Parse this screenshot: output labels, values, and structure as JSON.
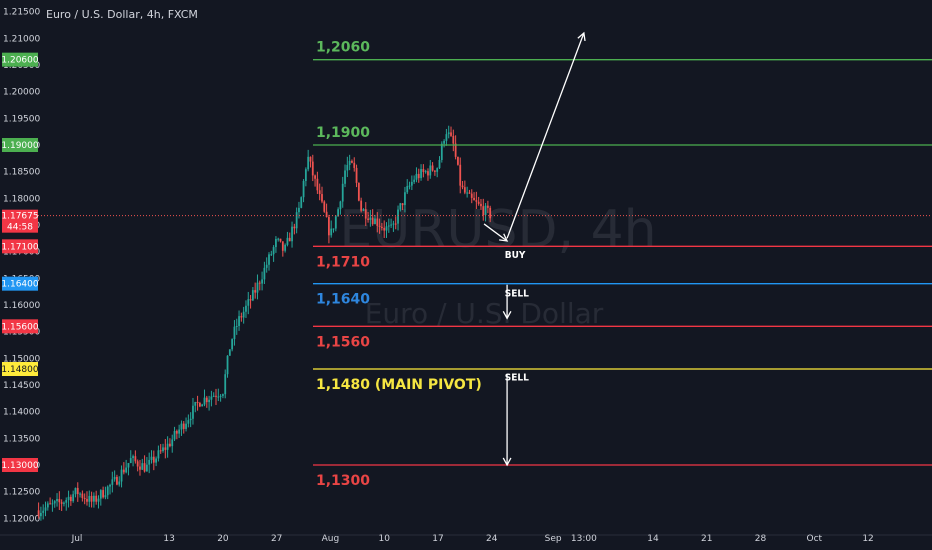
{
  "header": {
    "symbol_title": "Euro / U.S. Dollar, 4h, FXCM"
  },
  "watermark": {
    "ticker": "EURUSD, 4h",
    "name": "Euro / U.S. Dollar"
  },
  "colors": {
    "background": "#131722",
    "up": "#26a69a",
    "down": "#ef5350",
    "green_level": "#4caf50",
    "red_level": "#f23645",
    "blue_level": "#2196f3",
    "yellow_level": "#ffeb3b",
    "label_green": "#5cb85c",
    "label_red": "#e84545",
    "label_blue": "#2e86de",
    "label_yellow": "#f5e642"
  },
  "chart_data": {
    "type": "candlestick",
    "timeframe": "4h",
    "ylim": [
      1.1195,
      1.2155
    ],
    "yticks": [
      "1.21500",
      "1.21000",
      "1.20500",
      "1.20000",
      "1.19500",
      "1.19000",
      "1.18500",
      "1.18000",
      "1.17500",
      "1.17000",
      "1.16500",
      "1.16000",
      "1.15500",
      "1.15000",
      "1.14500",
      "1.14000",
      "1.13500",
      "1.13000",
      "1.12500",
      "1.12000"
    ],
    "xticks": [
      {
        "label": "Jul",
        "date": "2020-07-01"
      },
      {
        "label": "13",
        "date": "2020-07-13"
      },
      {
        "label": "20",
        "date": "2020-07-20"
      },
      {
        "label": "27",
        "date": "2020-07-27"
      },
      {
        "label": "Aug",
        "date": "2020-08-03"
      },
      {
        "label": "10",
        "date": "2020-08-10"
      },
      {
        "label": "17",
        "date": "2020-08-17"
      },
      {
        "label": "24",
        "date": "2020-08-24"
      },
      {
        "label": "Sep",
        "date": "2020-09-01"
      },
      {
        "label": "13:00",
        "date": "2020-09-05"
      },
      {
        "label": "14",
        "date": "2020-09-14"
      },
      {
        "label": "21",
        "date": "2020-09-21"
      },
      {
        "label": "28",
        "date": "2020-09-28"
      },
      {
        "label": "Oct",
        "date": "2020-10-05"
      },
      {
        "label": "12",
        "date": "2020-10-12"
      }
    ],
    "price_path": [
      {
        "date": "2020-06-26",
        "price": 1.1215
      },
      {
        "date": "2020-06-29",
        "price": 1.123
      },
      {
        "date": "2020-07-01",
        "price": 1.125
      },
      {
        "date": "2020-07-03",
        "price": 1.123
      },
      {
        "date": "2020-07-06",
        "price": 1.127
      },
      {
        "date": "2020-07-08",
        "price": 1.131
      },
      {
        "date": "2020-07-10",
        "price": 1.1295
      },
      {
        "date": "2020-07-13",
        "price": 1.134
      },
      {
        "date": "2020-07-15",
        "price": 1.138
      },
      {
        "date": "2020-07-17",
        "price": 1.142
      },
      {
        "date": "2020-07-20",
        "price": 1.144
      },
      {
        "date": "2020-07-21",
        "price": 1.153
      },
      {
        "date": "2020-07-22",
        "price": 1.157
      },
      {
        "date": "2020-07-24",
        "price": 1.162
      },
      {
        "date": "2020-07-27",
        "price": 1.172
      },
      {
        "date": "2020-07-28",
        "price": 1.17
      },
      {
        "date": "2020-07-30",
        "price": 1.178
      },
      {
        "date": "2020-07-31",
        "price": 1.188
      },
      {
        "date": "2020-08-03",
        "price": 1.173
      },
      {
        "date": "2020-08-04",
        "price": 1.178
      },
      {
        "date": "2020-08-05",
        "price": 1.186
      },
      {
        "date": "2020-08-06",
        "price": 1.186
      },
      {
        "date": "2020-08-07",
        "price": 1.178
      },
      {
        "date": "2020-08-10",
        "price": 1.1745
      },
      {
        "date": "2020-08-11",
        "price": 1.174
      },
      {
        "date": "2020-08-12",
        "price": 1.178
      },
      {
        "date": "2020-08-13",
        "price": 1.1815
      },
      {
        "date": "2020-08-14",
        "price": 1.184
      },
      {
        "date": "2020-08-17",
        "price": 1.186
      },
      {
        "date": "2020-08-18",
        "price": 1.193
      },
      {
        "date": "2020-08-19",
        "price": 1.19
      },
      {
        "date": "2020-08-20",
        "price": 1.182
      },
      {
        "date": "2020-08-21",
        "price": 1.18
      },
      {
        "date": "2020-08-24",
        "price": 1.1767
      }
    ],
    "current_price": "1.17675",
    "countdown": "44:58",
    "levels": [
      {
        "label": "1,2060",
        "value": 1.206,
        "badge": "1.20600",
        "color_key": "green"
      },
      {
        "label": "1,1900",
        "value": 1.19,
        "badge": "1.19000",
        "color_key": "green"
      },
      {
        "label": "1,1710",
        "value": 1.171,
        "badge": "1.17100",
        "color_key": "red"
      },
      {
        "label": "1,1640",
        "value": 1.164,
        "badge": "1.16400",
        "color_key": "blue"
      },
      {
        "label": "1,1560",
        "value": 1.156,
        "badge": "1.15600",
        "color_key": "red"
      },
      {
        "label": "1,1480 (MAIN PIVOT)",
        "value": 1.148,
        "badge": "1.14800",
        "color_key": "yellow"
      },
      {
        "label": "1,1300",
        "value": 1.13,
        "badge": "1.13000",
        "color_key": "red"
      }
    ],
    "annotations": [
      {
        "text": "BUY",
        "date": "2020-08-27",
        "price": 1.1688
      },
      {
        "text": "SELL",
        "date": "2020-08-27",
        "price": 1.1616
      },
      {
        "text": "SELL",
        "date": "2020-08-27",
        "price": 1.1458
      }
    ],
    "arrows": [
      {
        "from": {
          "date": "2020-08-23",
          "price": 1.1752
        },
        "to": {
          "date": "2020-08-26",
          "price": 1.172
        }
      },
      {
        "from": {
          "date": "2020-08-26",
          "price": 1.1725
        },
        "to": {
          "date": "2020-09-05",
          "price": 1.211
        }
      },
      {
        "from": {
          "date": "2020-08-26",
          "price": 1.1638
        },
        "to": {
          "date": "2020-08-26",
          "price": 1.1575
        }
      },
      {
        "from": {
          "date": "2020-08-26",
          "price": 1.147
        },
        "to": {
          "date": "2020-08-26",
          "price": 1.13
        }
      }
    ]
  }
}
